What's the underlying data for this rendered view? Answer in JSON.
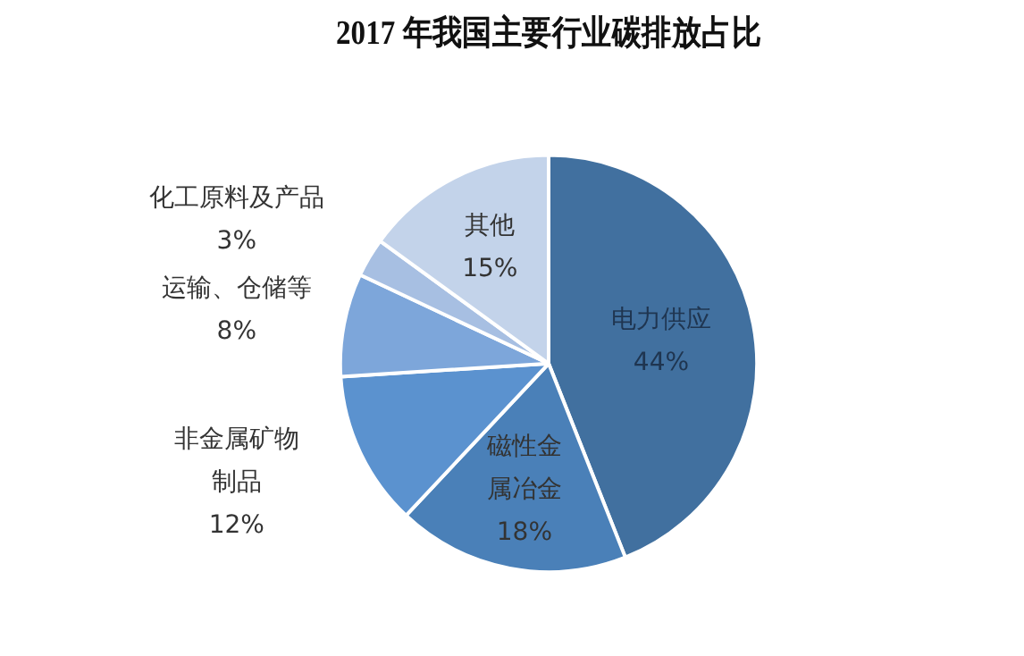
{
  "chart_data": {
    "type": "pie",
    "title": "2017 年我国主要行业碳排放占比",
    "categories": [
      "电力供应",
      "磁性金属冶金",
      "非金属矿物制品",
      "运输、仓储等",
      "化工原料及产品",
      "其他"
    ],
    "values": [
      44,
      18,
      12,
      8,
      3,
      15
    ],
    "value_labels": [
      "44%",
      "18%",
      "12%",
      "8%",
      "3%",
      "15%"
    ],
    "colors": [
      "#41709f",
      "#4a80b8",
      "#5b92cf",
      "#7da6da",
      "#a7bfe2",
      "#c3d3ea"
    ],
    "legend": false
  }
}
